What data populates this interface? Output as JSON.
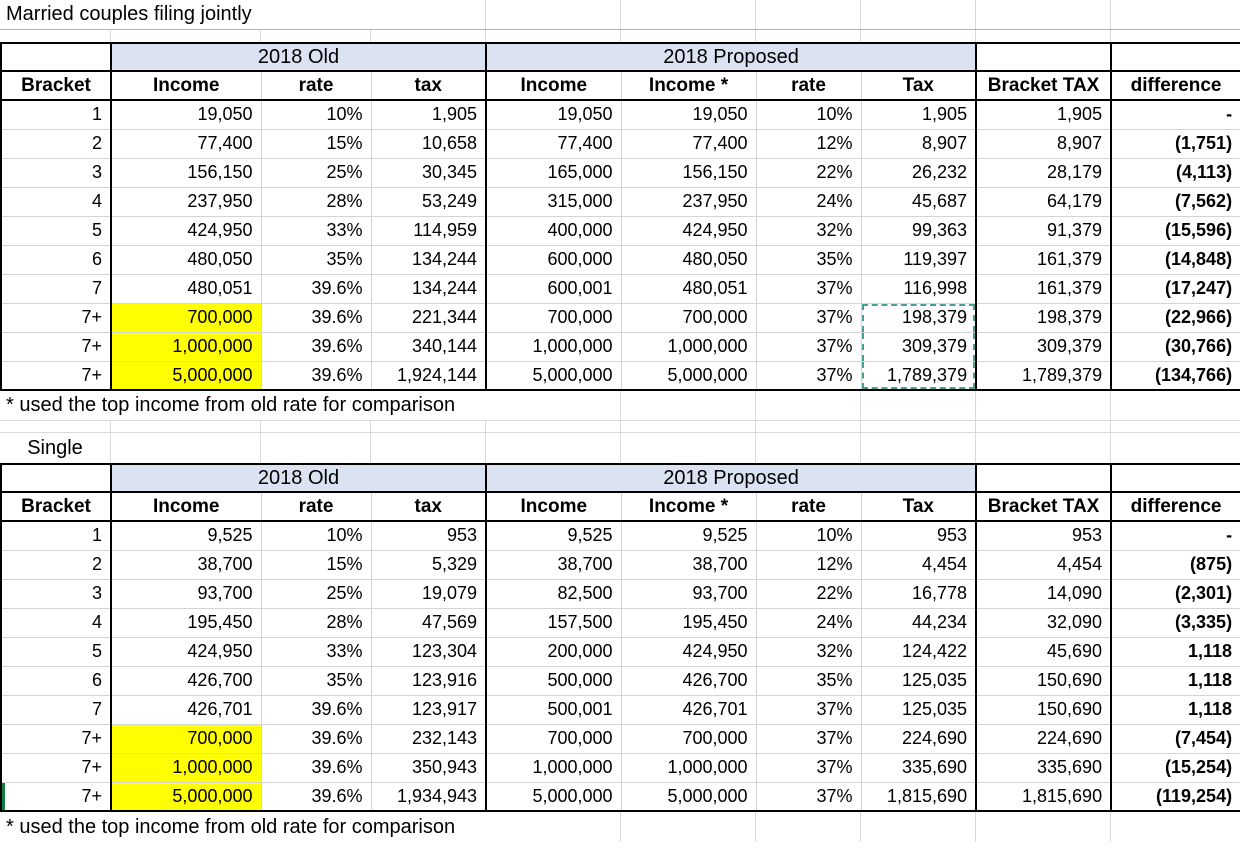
{
  "page": {
    "title": "Married couples filing jointly",
    "footnote": "* used the top income from old rate for comparison",
    "single_label": "Single"
  },
  "colors": {
    "group_band_fill": "#dbe2f2",
    "highlight_yellow": "#ffff00",
    "copy_marquee_teal": "#47a192",
    "selection_green": "#107c41"
  },
  "headers": {
    "old_group": "2018 Old",
    "proposed_group": "2018 Proposed",
    "bracket": "Bracket",
    "old_income": "Income",
    "old_rate": "rate",
    "old_tax": "tax",
    "p_income": "Income",
    "p_income_star": "Income *",
    "p_rate": "rate",
    "p_tax": "Tax",
    "bracket_tax": "Bracket TAX",
    "difference": "difference"
  },
  "tables": {
    "married": {
      "rows": [
        {
          "bracket": "1",
          "old_income": "19,050",
          "old_rate": "10%",
          "old_tax": "1,905",
          "p_income": "19,050",
          "p_income_star": "19,050",
          "p_rate": "10%",
          "p_tax": "1,905",
          "bracket_tax": "1,905",
          "difference": "-"
        },
        {
          "bracket": "2",
          "old_income": "77,400",
          "old_rate": "15%",
          "old_tax": "10,658",
          "p_income": "77,400",
          "p_income_star": "77,400",
          "p_rate": "12%",
          "p_tax": "8,907",
          "bracket_tax": "8,907",
          "difference": "(1,751)"
        },
        {
          "bracket": "3",
          "old_income": "156,150",
          "old_rate": "25%",
          "old_tax": "30,345",
          "p_income": "165,000",
          "p_income_star": "156,150",
          "p_rate": "22%",
          "p_tax": "26,232",
          "bracket_tax": "28,179",
          "difference": "(4,113)"
        },
        {
          "bracket": "4",
          "old_income": "237,950",
          "old_rate": "28%",
          "old_tax": "53,249",
          "p_income": "315,000",
          "p_income_star": "237,950",
          "p_rate": "24%",
          "p_tax": "45,687",
          "bracket_tax": "64,179",
          "difference": "(7,562)"
        },
        {
          "bracket": "5",
          "old_income": "424,950",
          "old_rate": "33%",
          "old_tax": "114,959",
          "p_income": "400,000",
          "p_income_star": "424,950",
          "p_rate": "32%",
          "p_tax": "99,363",
          "bracket_tax": "91,379",
          "difference": "(15,596)"
        },
        {
          "bracket": "6",
          "old_income": "480,050",
          "old_rate": "35%",
          "old_tax": "134,244",
          "p_income": "600,000",
          "p_income_star": "480,050",
          "p_rate": "35%",
          "p_tax": "119,397",
          "bracket_tax": "161,379",
          "difference": "(14,848)"
        },
        {
          "bracket": "7",
          "old_income": "480,051",
          "old_rate": "39.6%",
          "old_tax": "134,244",
          "p_income": "600,001",
          "p_income_star": "480,051",
          "p_rate": "37%",
          "p_tax": "116,998",
          "bracket_tax": "161,379",
          "difference": "(17,247)"
        },
        {
          "bracket": "7+",
          "old_income": "700,000",
          "old_rate": "39.6%",
          "old_tax": "221,344",
          "p_income": "700,000",
          "p_income_star": "700,000",
          "p_rate": "37%",
          "p_tax": "198,379",
          "bracket_tax": "198,379",
          "difference": "(22,966)",
          "highlight": true,
          "tax_selected": true
        },
        {
          "bracket": "7+",
          "old_income": "1,000,000",
          "old_rate": "39.6%",
          "old_tax": "340,144",
          "p_income": "1,000,000",
          "p_income_star": "1,000,000",
          "p_rate": "37%",
          "p_tax": "309,379",
          "bracket_tax": "309,379",
          "difference": "(30,766)",
          "highlight": true,
          "tax_selected": true
        },
        {
          "bracket": "7+",
          "old_income": "5,000,000",
          "old_rate": "39.6%",
          "old_tax": "1,924,144",
          "p_income": "5,000,000",
          "p_income_star": "5,000,000",
          "p_rate": "37%",
          "p_tax": "1,789,379",
          "bracket_tax": "1,789,379",
          "difference": "(134,766)",
          "highlight": true,
          "tax_selected": true
        }
      ]
    },
    "single": {
      "rows": [
        {
          "bracket": "1",
          "old_income": "9,525",
          "old_rate": "10%",
          "old_tax": "953",
          "p_income": "9,525",
          "p_income_star": "9,525",
          "p_rate": "10%",
          "p_tax": "953",
          "bracket_tax": "953",
          "difference": "-"
        },
        {
          "bracket": "2",
          "old_income": "38,700",
          "old_rate": "15%",
          "old_tax": "5,329",
          "p_income": "38,700",
          "p_income_star": "38,700",
          "p_rate": "12%",
          "p_tax": "4,454",
          "bracket_tax": "4,454",
          "difference": "(875)"
        },
        {
          "bracket": "3",
          "old_income": "93,700",
          "old_rate": "25%",
          "old_tax": "19,079",
          "p_income": "82,500",
          "p_income_star": "93,700",
          "p_rate": "22%",
          "p_tax": "16,778",
          "bracket_tax": "14,090",
          "difference": "(2,301)"
        },
        {
          "bracket": "4",
          "old_income": "195,450",
          "old_rate": "28%",
          "old_tax": "47,569",
          "p_income": "157,500",
          "p_income_star": "195,450",
          "p_rate": "24%",
          "p_tax": "44,234",
          "bracket_tax": "32,090",
          "difference": "(3,335)"
        },
        {
          "bracket": "5",
          "old_income": "424,950",
          "old_rate": "33%",
          "old_tax": "123,304",
          "p_income": "200,000",
          "p_income_star": "424,950",
          "p_rate": "32%",
          "p_tax": "124,422",
          "bracket_tax": "45,690",
          "difference": "1,118"
        },
        {
          "bracket": "6",
          "old_income": "426,700",
          "old_rate": "35%",
          "old_tax": "123,916",
          "p_income": "500,000",
          "p_income_star": "426,700",
          "p_rate": "35%",
          "p_tax": "125,035",
          "bracket_tax": "150,690",
          "difference": "1,118"
        },
        {
          "bracket": "7",
          "old_income": "426,701",
          "old_rate": "39.6%",
          "old_tax": "123,917",
          "p_income": "500,001",
          "p_income_star": "426,701",
          "p_rate": "37%",
          "p_tax": "125,035",
          "bracket_tax": "150,690",
          "difference": "1,118"
        },
        {
          "bracket": "7+",
          "old_income": "700,000",
          "old_rate": "39.6%",
          "old_tax": "232,143",
          "p_income": "700,000",
          "p_income_star": "700,000",
          "p_rate": "37%",
          "p_tax": "224,690",
          "bracket_tax": "224,690",
          "difference": "(7,454)",
          "highlight": true
        },
        {
          "bracket": "7+",
          "old_income": "1,000,000",
          "old_rate": "39.6%",
          "old_tax": "350,943",
          "p_income": "1,000,000",
          "p_income_star": "1,000,000",
          "p_rate": "37%",
          "p_tax": "335,690",
          "bracket_tax": "335,690",
          "difference": "(15,254)",
          "highlight": true
        },
        {
          "bracket": "7+",
          "old_income": "5,000,000",
          "old_rate": "39.6%",
          "old_tax": "1,934,943",
          "p_income": "5,000,000",
          "p_income_star": "5,000,000",
          "p_rate": "37%",
          "p_tax": "1,815,690",
          "bracket_tax": "1,815,690",
          "difference": "(119,254)",
          "highlight": true,
          "row_selected": true
        }
      ]
    }
  }
}
